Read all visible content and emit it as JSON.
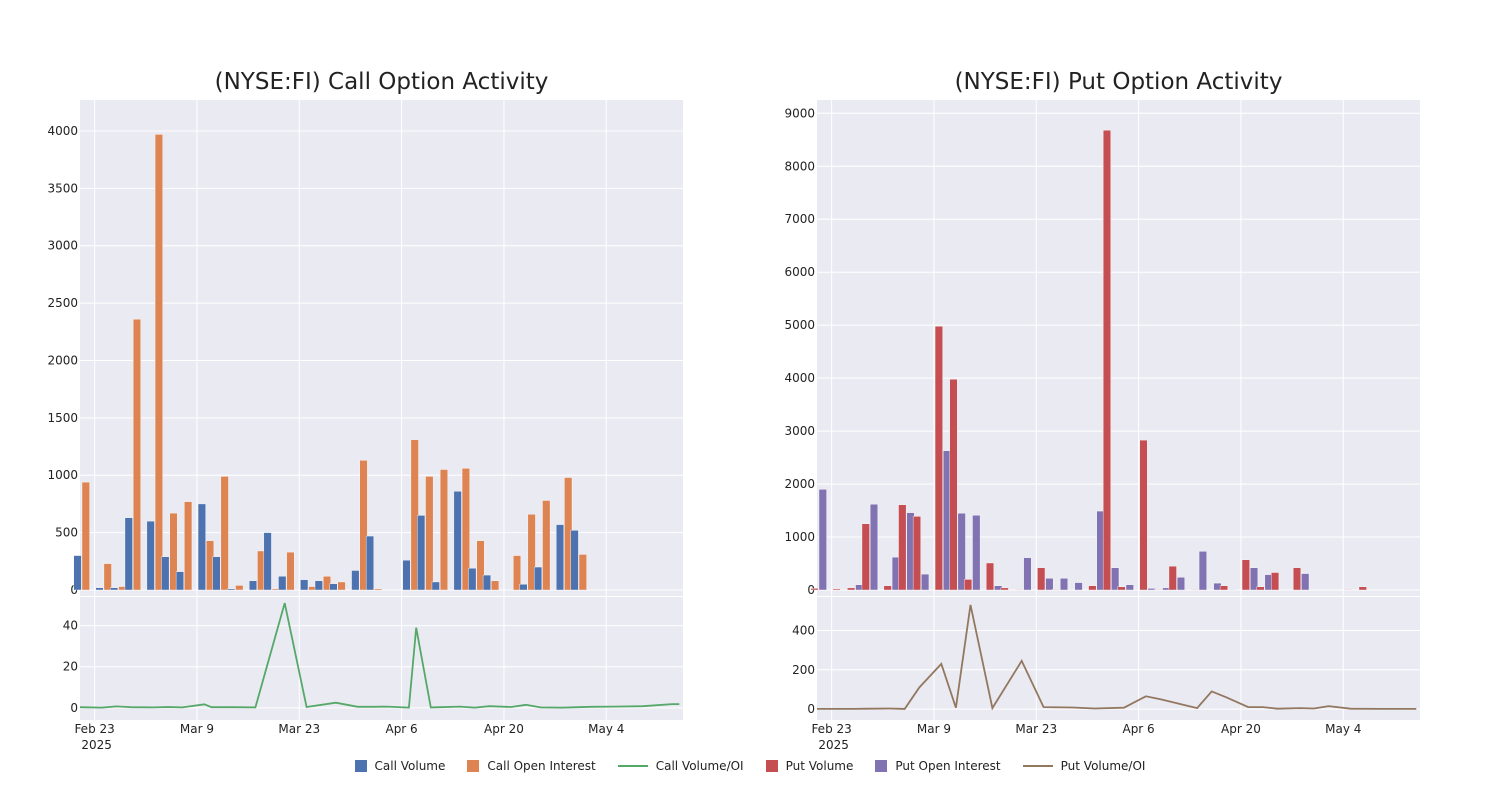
{
  "chart_data": [
    {
      "type": "bar",
      "title": "(NYSE:FI) Call Option Activity",
      "x_ticks": [
        "Feb 23\n2025",
        "Mar 9",
        "Mar 23",
        "Apr 6",
        "Apr 20",
        "May 4"
      ],
      "y_ticks": [
        0,
        500,
        1000,
        1500,
        2000,
        2500,
        3000,
        3500,
        4000
      ],
      "ratio_y_ticks": [
        0,
        20,
        40
      ],
      "ylim": [
        0,
        4200
      ],
      "ratio_ylim": [
        -3,
        52
      ],
      "categories": [
        "2025-02-21",
        "2025-02-24",
        "2025-02-25",
        "2025-02-26",
        "2025-02-27",
        "2025-02-28",
        "2025-03-03",
        "2025-03-04",
        "2025-03-05",
        "2025-03-06",
        "2025-03-07",
        "2025-03-10",
        "2025-03-11",
        "2025-03-12",
        "2025-03-13",
        "2025-03-14",
        "2025-03-17",
        "2025-03-18",
        "2025-03-19",
        "2025-03-20",
        "2025-03-21",
        "2025-03-24",
        "2025-03-25",
        "2025-03-26",
        "2025-03-27",
        "2025-03-28",
        "2025-03-31",
        "2025-04-01",
        "2025-04-02",
        "2025-04-03",
        "2025-04-04",
        "2025-04-07",
        "2025-04-08",
        "2025-04-09",
        "2025-04-10",
        "2025-04-11",
        "2025-04-14",
        "2025-04-15",
        "2025-04-16",
        "2025-04-17",
        "2025-04-21",
        "2025-04-22",
        "2025-04-23",
        "2025-04-24",
        "2025-04-25",
        "2025-04-28",
        "2025-04-29",
        "2025-04-30",
        "2025-05-01",
        "2025-05-02",
        "2025-05-05",
        "2025-05-06",
        "2025-05-07",
        "2025-05-08",
        "2025-05-09",
        "2025-05-12",
        "2025-05-13"
      ],
      "series": [
        {
          "name": "Call Volume",
          "color": "#4c72b0",
          "values": [
            300,
            0,
            0,
            20,
            0,
            0,
            20,
            630,
            600,
            0,
            290,
            160,
            750,
            290,
            0,
            10,
            80,
            500,
            120,
            90,
            0,
            80,
            55,
            170,
            470,
            0,
            260,
            650,
            70,
            860,
            190,
            130,
            0,
            0,
            50,
            200,
            570,
            520,
            0,
            0,
            0,
            0,
            0,
            0,
            0,
            0,
            0,
            0,
            0,
            0,
            0,
            0,
            0,
            0,
            0,
            0,
            0
          ]
        },
        {
          "name": "Call Open Interest",
          "color": "#dd8452",
          "values": [
            940,
            0,
            0,
            230,
            0,
            0,
            30,
            2360,
            3970,
            0,
            670,
            770,
            430,
            990,
            0,
            40,
            340,
            10,
            330,
            30,
            0,
            120,
            70,
            1130,
            10,
            0,
            1310,
            990,
            1050,
            1060,
            430,
            80,
            0,
            300,
            660,
            780,
            980,
            310,
            0,
            0,
            0,
            0,
            0,
            0,
            0,
            0,
            0,
            0,
            0,
            0,
            0,
            0,
            0,
            0,
            0,
            0,
            0
          ]
        }
      ],
      "bar_pairs": {
        "dates": [
          "2025-02-21",
          "2025-02-24",
          "2025-02-26",
          "2025-02-28",
          "2025-03-03",
          "2025-03-05",
          "2025-03-07",
          "2025-03-10",
          "2025-03-12",
          "2025-03-14",
          "2025-03-17",
          "2025-03-19",
          "2025-03-21",
          "2025-03-24",
          "2025-03-26",
          "2025-03-28",
          "2025-03-31",
          "2025-04-02",
          "2025-04-04",
          "2025-04-07",
          "2025-04-09",
          "2025-04-11",
          "2025-04-14",
          "2025-04-16",
          "2025-04-18",
          "2025-04-21",
          "2025-04-23",
          "2025-04-25",
          "2025-04-28",
          "2025-04-30",
          "2025-05-02",
          "2025-05-05",
          "2025-05-07",
          "2025-05-09"
        ],
        "call_volume": [
          300,
          20,
          20,
          630,
          600,
          290,
          160,
          750,
          290,
          10,
          80,
          500,
          120,
          90,
          80,
          55,
          170,
          470,
          0,
          260,
          650,
          70,
          860,
          190,
          130,
          0,
          50,
          200,
          570,
          520,
          0,
          0,
          0,
          0
        ],
        "call_open_interest": [
          940,
          230,
          30,
          2360,
          3970,
          670,
          770,
          430,
          990,
          40,
          340,
          10,
          330,
          30,
          120,
          70,
          1130,
          10,
          0,
          1310,
          990,
          1050,
          1060,
          430,
          80,
          300,
          660,
          780,
          980,
          310,
          0,
          0,
          0,
          0
        ]
      },
      "ratio_series": {
        "name": "Call Volume/OI",
        "color": "#55a868",
        "dates": [
          "2025-02-21",
          "2025-02-24",
          "2025-02-26",
          "2025-02-28",
          "2025-03-03",
          "2025-03-05",
          "2025-03-07",
          "2025-03-10",
          "2025-03-11",
          "2025-03-12",
          "2025-03-14",
          "2025-03-17",
          "2025-03-21",
          "2025-03-24",
          "2025-03-28",
          "2025-03-31",
          "2025-04-02",
          "2025-04-04",
          "2025-04-07",
          "2025-04-08",
          "2025-04-10",
          "2025-04-14",
          "2025-04-16",
          "2025-04-18",
          "2025-04-21",
          "2025-04-23",
          "2025-04-25",
          "2025-04-28",
          "2025-04-30",
          "2025-05-02",
          "2025-05-05",
          "2025-05-09",
          "2025-05-13",
          "2025-05-14"
        ],
        "values": [
          0.3,
          0.1,
          0.7,
          0.3,
          0.2,
          0.4,
          0.2,
          1.7,
          0.3,
          0.3,
          0.3,
          0.2,
          51,
          0.4,
          2.5,
          0.5,
          0.5,
          0.6,
          0.1,
          39,
          0.2,
          0.6,
          0.1,
          0.8,
          0.4,
          1.5,
          0.2,
          0.1,
          0.3,
          0.5,
          0.6,
          0.8,
          1.8,
          1.8
        ]
      }
    },
    {
      "type": "bar",
      "title": "(NYSE:FI) Put Option Activity",
      "x_ticks": [
        "Feb 23\n2025",
        "Mar 9",
        "Mar 23",
        "Apr 6",
        "Apr 20",
        "May 4"
      ],
      "y_ticks": [
        0,
        1000,
        2000,
        3000,
        4000,
        5000,
        6000,
        7000,
        8000,
        9000
      ],
      "ratio_y_ticks": [
        0,
        200,
        400
      ],
      "ylim": [
        0,
        9100
      ],
      "ratio_ylim": [
        -25,
        550
      ],
      "bar_pairs": {
        "dates": [
          "2025-02-21",
          "2025-02-24",
          "2025-02-26",
          "2025-02-28",
          "2025-03-03",
          "2025-03-05",
          "2025-03-07",
          "2025-03-10",
          "2025-03-12",
          "2025-03-14",
          "2025-03-17",
          "2025-03-19",
          "2025-03-21",
          "2025-03-24",
          "2025-03-26",
          "2025-03-28",
          "2025-03-31",
          "2025-04-02",
          "2025-04-04",
          "2025-04-07",
          "2025-04-09",
          "2025-04-11",
          "2025-04-14",
          "2025-04-16",
          "2025-04-18",
          "2025-04-21",
          "2025-04-23",
          "2025-04-25",
          "2025-04-28",
          "2025-04-30",
          "2025-05-02",
          "2025-05-05",
          "2025-05-07",
          "2025-05-09"
        ],
        "put_volume": [
          30,
          20,
          40,
          1250,
          80,
          1610,
          1390,
          4980,
          3980,
          200,
          510,
          40,
          10,
          420,
          10,
          0,
          80,
          8680,
          60,
          2830,
          10,
          450,
          10,
          0,
          80,
          570,
          60,
          330,
          420,
          0,
          0,
          10,
          60,
          0
        ],
        "put_open_interest": [
          1900,
          0,
          100,
          1620,
          620,
          1460,
          300,
          2630,
          1450,
          1410,
          80,
          0,
          610,
          220,
          220,
          140,
          1490,
          420,
          100,
          30,
          40,
          240,
          730,
          130,
          10,
          420,
          290,
          0,
          310,
          0,
          0,
          0,
          0,
          0
        ]
      },
      "ratio_series": {
        "name": "Put Volume/OI",
        "color": "#937860",
        "dates": [
          "2025-02-21",
          "2025-02-24",
          "2025-02-26",
          "2025-02-28",
          "2025-03-03",
          "2025-03-05",
          "2025-03-07",
          "2025-03-10",
          "2025-03-12",
          "2025-03-14",
          "2025-03-17",
          "2025-03-21",
          "2025-03-24",
          "2025-03-28",
          "2025-03-31",
          "2025-04-04",
          "2025-04-07",
          "2025-04-09",
          "2025-04-14",
          "2025-04-16",
          "2025-04-18",
          "2025-04-21",
          "2025-04-23",
          "2025-04-25",
          "2025-04-28",
          "2025-04-30",
          "2025-05-02",
          "2025-05-05",
          "2025-05-09",
          "2025-05-13",
          "2025-05-14"
        ],
        "values": [
          1,
          1,
          1,
          2,
          3,
          1,
          110,
          230,
          7,
          530,
          5,
          245,
          10,
          8,
          3,
          7,
          65,
          50,
          5,
          90,
          60,
          10,
          10,
          2,
          5,
          3,
          15,
          2,
          1,
          1,
          1
        ]
      }
    }
  ],
  "legend": [
    {
      "label": "Call Volume",
      "kind": "box",
      "color": "#4c72b0"
    },
    {
      "label": "Call Open Interest",
      "kind": "box",
      "color": "#dd8452"
    },
    {
      "label": "Call Volume/OI",
      "kind": "line",
      "color": "#55a868"
    },
    {
      "label": "Put Volume",
      "kind": "box",
      "color": "#c44e52"
    },
    {
      "label": "Put Open Interest",
      "kind": "box",
      "color": "#8172b2"
    },
    {
      "label": "Put Volume/OI",
      "kind": "line",
      "color": "#937860"
    }
  ],
  "colors": {
    "panel_bg": "#eaeaf2",
    "grid": "#ffffff"
  }
}
